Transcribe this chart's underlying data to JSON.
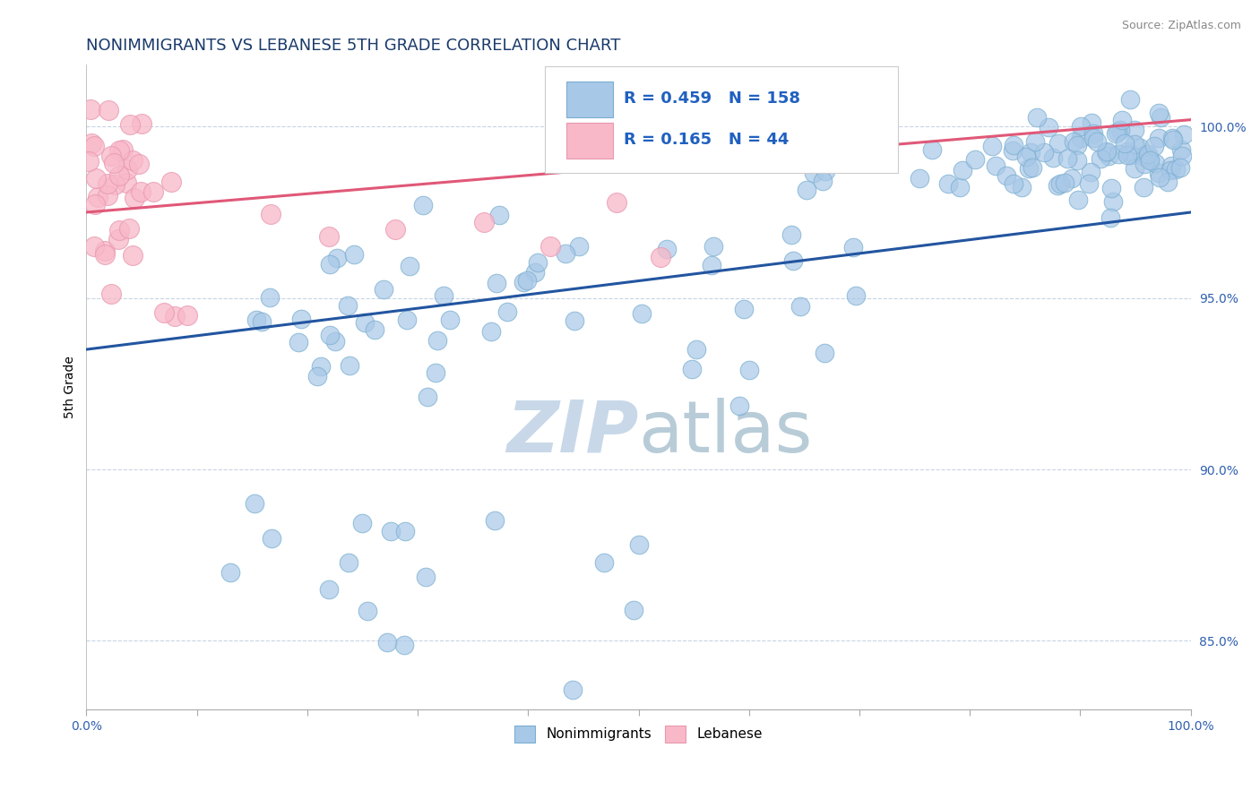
{
  "title": "NONIMMIGRANTS VS LEBANESE 5TH GRADE CORRELATION CHART",
  "source": "Source: ZipAtlas.com",
  "ylabel": "5th Grade",
  "y_ticks": [
    85.0,
    90.0,
    95.0,
    100.0
  ],
  "y_tick_labels": [
    "85.0%",
    "90.0%",
    "95.0%",
    "100.0%"
  ],
  "x_ticks": [
    0.0,
    0.1,
    0.2,
    0.3,
    0.4,
    0.5,
    0.6,
    0.7,
    0.8,
    0.9,
    1.0
  ],
  "xmin": 0.0,
  "xmax": 1.0,
  "ymin": 83.0,
  "ymax": 101.8,
  "R_blue": 0.459,
  "N_blue": 158,
  "R_pink": 0.165,
  "N_pink": 44,
  "blue_color": "#a8c8e8",
  "pink_color": "#f8b8c8",
  "blue_edge_color": "#7aaed0",
  "pink_edge_color": "#e898b0",
  "blue_line_color": "#2255a0",
  "pink_line_color": "#e05878",
  "title_color": "#1a3a6b",
  "legend_text_color": "#2060c0",
  "watermark_color": "#c8d8e8",
  "background_color": "#ffffff",
  "grid_color": "#c8d4e4",
  "tick_color": "#3060b0",
  "title_fontsize": 13,
  "axis_label_fontsize": 10,
  "tick_fontsize": 10,
  "legend_fontsize": 13,
  "blue_line_y0": 93.5,
  "blue_line_y1": 97.5,
  "pink_line_y0": 97.5,
  "pink_line_y1": 100.2
}
